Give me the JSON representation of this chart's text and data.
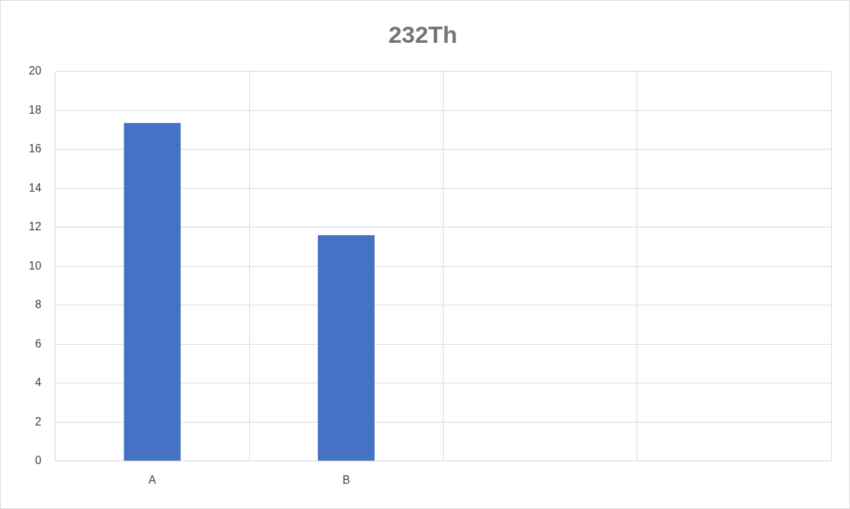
{
  "chart_data": {
    "type": "bar",
    "title": "232Th",
    "categories": [
      "A",
      "B",
      null,
      null
    ],
    "values": [
      17.35,
      11.6,
      null,
      null
    ],
    "color": "#4472c4",
    "ylim": [
      0,
      20
    ],
    "yticks": [
      0,
      2,
      4,
      6,
      8,
      10,
      12,
      14,
      16,
      18,
      20
    ],
    "grid": true
  }
}
